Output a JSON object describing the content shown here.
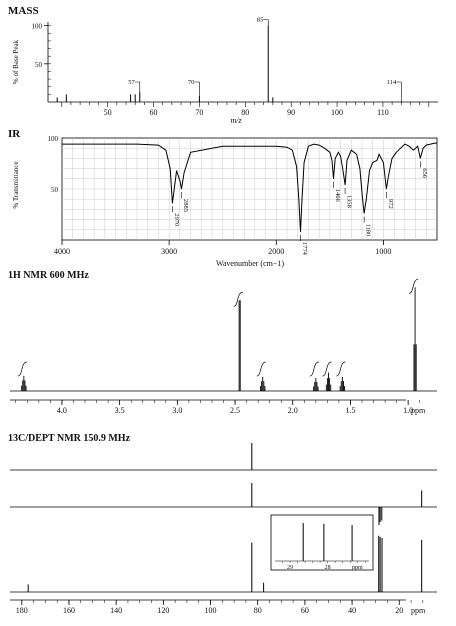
{
  "chart_data": [
    {
      "type": "bar",
      "title": "MASS",
      "ylabel": "% of Base Peak",
      "xlabel": "m/z",
      "xlim": [
        37,
        122
      ],
      "ylim": [
        0,
        110
      ],
      "x_ticks": [
        50,
        60,
        70,
        80,
        90,
        100,
        110
      ],
      "y_ticks": [
        50,
        100
      ],
      "peaks": [
        {
          "x": 39,
          "y": 6
        },
        {
          "x": 41,
          "y": 10
        },
        {
          "x": 55,
          "y": 10
        },
        {
          "x": 56,
          "y": 10
        },
        {
          "x": 57,
          "y": 13
        },
        {
          "x": 70,
          "y": 8
        },
        {
          "x": 85,
          "y": 100
        },
        {
          "x": 86,
          "y": 6
        },
        {
          "x": 114,
          "y": 1
        }
      ],
      "peak_labels": [
        {
          "x": 57,
          "text": "57"
        },
        {
          "x": 70,
          "text": "70"
        },
        {
          "x": 85,
          "text": "85"
        },
        {
          "x": 114,
          "text": "114"
        }
      ]
    },
    {
      "type": "line",
      "title": "IR",
      "ylabel": "% Transmittance",
      "xlabel": "Wavenumber (cm−1)",
      "xlim": [
        4000,
        500
      ],
      "ylim": [
        0,
        100
      ],
      "x_ticks": [
        4000,
        3000,
        2000,
        1000
      ],
      "y_ticks": [
        50,
        100
      ],
      "x": [
        4000,
        3500,
        3300,
        3100,
        3030,
        2990,
        2970,
        2950,
        2930,
        2900,
        2885,
        2860,
        2800,
        2500,
        2200,
        2000,
        1900,
        1850,
        1810,
        1790,
        1774,
        1760,
        1740,
        1700,
        1650,
        1600,
        1550,
        1500,
        1480,
        1466,
        1450,
        1420,
        1400,
        1380,
        1358,
        1340,
        1300,
        1250,
        1220,
        1200,
        1180,
        1160,
        1130,
        1100,
        1060,
        1040,
        1000,
        985,
        972,
        955,
        920,
        880,
        840,
        800,
        760,
        720,
        680,
        656,
        630,
        600,
        560,
        520,
        500
      ],
      "y": [
        94,
        94,
        94,
        93,
        88,
        70,
        36,
        52,
        68,
        58,
        50,
        66,
        86,
        92,
        92,
        92,
        91,
        88,
        72,
        40,
        8,
        40,
        76,
        92,
        94,
        93,
        90,
        86,
        78,
        60,
        80,
        86,
        82,
        70,
        54,
        78,
        88,
        84,
        70,
        46,
        26,
        40,
        68,
        76,
        78,
        84,
        76,
        62,
        50,
        62,
        80,
        86,
        90,
        94,
        92,
        88,
        92,
        80,
        90,
        93,
        94,
        95,
        95
      ],
      "peak_labels": [
        {
          "x": 2970,
          "text": "2970"
        },
        {
          "x": 2885,
          "text": "2885"
        },
        {
          "x": 1774,
          "text": "1774"
        },
        {
          "x": 1466,
          "text": "1466"
        },
        {
          "x": 1358,
          "text": "1358"
        },
        {
          "x": 1180,
          "text": "1180"
        },
        {
          "x": 972,
          "text": "972"
        },
        {
          "x": 656,
          "text": "656"
        }
      ]
    },
    {
      "type": "line",
      "title": "1H NMR 600 MHz",
      "xlabel": "ppm",
      "xlim": [
        4.45,
        0.75
      ],
      "x_ticks": [
        4.0,
        3.5,
        3.0,
        2.5,
        2.0,
        1.5,
        1.0
      ],
      "peaks": [
        {
          "ppm": 4.33,
          "height": 0.14,
          "lines": 5
        },
        {
          "ppm": 2.46,
          "height": 0.84,
          "lines": 2
        },
        {
          "ppm": 2.26,
          "height": 0.13,
          "lines": 5
        },
        {
          "ppm": 1.8,
          "height": 0.12,
          "lines": 5
        },
        {
          "ppm": 1.69,
          "height": 0.17,
          "lines": 5
        },
        {
          "ppm": 1.57,
          "height": 0.13,
          "lines": 5
        },
        {
          "ppm": 0.94,
          "height": 0.96,
          "lines": 3
        }
      ]
    },
    {
      "type": "line",
      "title": "13C/DEPT NMR 150.9 MHz",
      "xlabel": "ppm",
      "xlim": [
        185,
        4
      ],
      "x_ticks": [
        180,
        160,
        140,
        120,
        100,
        80,
        60,
        40,
        20
      ],
      "dept90": [
        {
          "ppm": 82.5,
          "height": 0.9
        }
      ],
      "dept135": [
        {
          "ppm": 82.5,
          "height": 0.8
        },
        {
          "ppm": 10.5,
          "height": 0.55
        },
        {
          "ppm": 28.6,
          "height": -0.6
        },
        {
          "ppm": 28.1,
          "height": -0.5
        },
        {
          "ppm": 27.4,
          "height": -0.45
        }
      ],
      "broadband": [
        {
          "ppm": 177.3,
          "height": 0.13
        },
        {
          "ppm": 82.5,
          "height": 0.85
        },
        {
          "ppm": 77.5,
          "height": 0.16
        },
        {
          "ppm": 28.7,
          "height": 0.97
        },
        {
          "ppm": 28.1,
          "height": 0.95
        },
        {
          "ppm": 27.3,
          "height": 0.93
        },
        {
          "ppm": 10.5,
          "height": 0.9
        }
      ],
      "inset": {
        "xlim": [
          29.4,
          26.9
        ],
        "x_ticks": [
          29,
          28
        ],
        "xlabel": "ppm",
        "peaks": [
          {
            "ppm": 28.65,
            "height": 0.95
          },
          {
            "ppm": 28.1,
            "height": 0.93
          },
          {
            "ppm": 27.35,
            "height": 0.9
          }
        ]
      }
    }
  ]
}
